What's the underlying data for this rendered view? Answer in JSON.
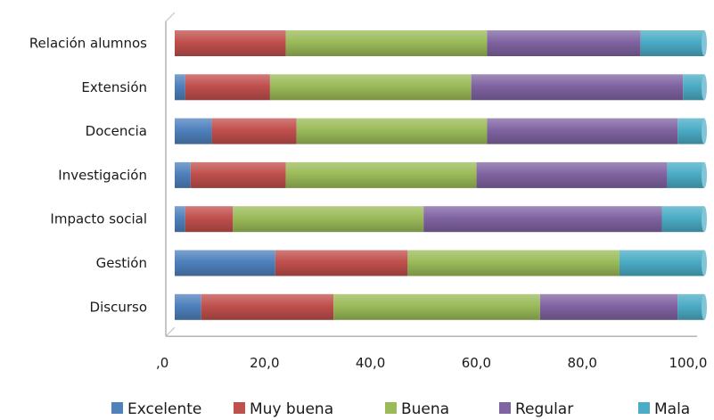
{
  "chart_data": {
    "type": "bar",
    "orientation": "horizontal",
    "stacked": true,
    "percent": true,
    "title": "",
    "xlabel": "",
    "ylabel": "",
    "xlim": [
      0,
      100
    ],
    "x_ticks": [
      ",0",
      "20,0",
      "40,0",
      "60,0",
      "80,0",
      "100,0"
    ],
    "grid": false,
    "legend_position": "bottom",
    "categories": [
      "Relación alumnos",
      "Extensión",
      "Docencia",
      "Investigación",
      "Impacto social",
      "Gestión",
      "Discurso"
    ],
    "series": [
      {
        "name": "Excelente",
        "color": "#4f81bd",
        "values": [
          0,
          2,
          7,
          3,
          2,
          19,
          5
        ]
      },
      {
        "name": "Muy buena",
        "color": "#c0504d",
        "values": [
          21,
          16,
          16,
          18,
          9,
          25,
          25
        ]
      },
      {
        "name": "Buena",
        "color": "#9bbb59",
        "values": [
          38,
          38,
          36,
          36,
          36,
          40,
          39
        ]
      },
      {
        "name": "Regular",
        "color": "#8064a2",
        "values": [
          29,
          40,
          36,
          36,
          45,
          0,
          26
        ]
      },
      {
        "name": "Mala",
        "color": "#4bacc6",
        "values": [
          12,
          4,
          5,
          7,
          8,
          16,
          5
        ]
      }
    ]
  }
}
